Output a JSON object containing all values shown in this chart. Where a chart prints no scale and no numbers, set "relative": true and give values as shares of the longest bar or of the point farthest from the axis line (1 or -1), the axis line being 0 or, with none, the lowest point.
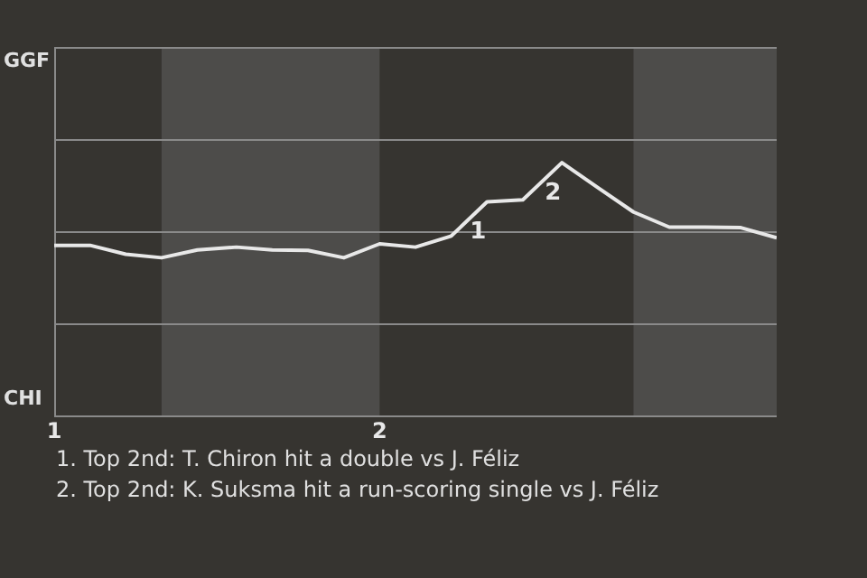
{
  "chart_data": {
    "type": "line",
    "relative": true,
    "x": [
      1,
      1.11,
      1.22,
      1.33,
      1.44,
      1.56,
      1.67,
      1.78,
      1.89,
      2,
      2.11,
      2.22,
      2.33,
      2.44,
      2.56,
      2.67,
      2.78,
      2.89,
      3,
      3.11,
      3.22
    ],
    "series": [
      {
        "color": "#e8e8e8",
        "values": [
          0.673,
          0.673,
          0.638,
          0.624,
          0.655,
          0.666,
          0.655,
          0.653,
          0.624,
          0.679,
          0.666,
          0.71,
          0.845,
          0.853,
          1,
          0.902,
          0.805,
          0.745,
          0.745,
          0.743,
          0.703
        ]
      }
    ],
    "xlim": [
      1,
      3.22
    ],
    "xticks": [
      1,
      2
    ],
    "ref_lines": [
      {
        "axis": "y",
        "value": 0.364,
        "color": "#8a8a8a"
      },
      {
        "axis": "y",
        "value": 0.729,
        "color": "#8a8a8a"
      },
      {
        "axis": "y",
        "value": 1.093,
        "color": "#8a8a8a"
      }
    ],
    "bands": [
      {
        "axis": "x",
        "from": 1.33,
        "to": 2,
        "color": "#4d4c4a"
      },
      {
        "axis": "x",
        "from": 2.78,
        "to": 3.22,
        "color": "#4d4c4a"
      }
    ],
    "annotations": [
      "GGF",
      "CHI",
      {
        "text": "1",
        "x": 2.33,
        "y": 0.845
      },
      {
        "text": "2",
        "x": 2.56,
        "y": 1
      },
      "1. Top 2nd: T. Chiron hit a double vs J. Féliz",
      "2. Top 2nd: K. Suksma hit a run-scoring single vs J. Féliz"
    ]
  }
}
